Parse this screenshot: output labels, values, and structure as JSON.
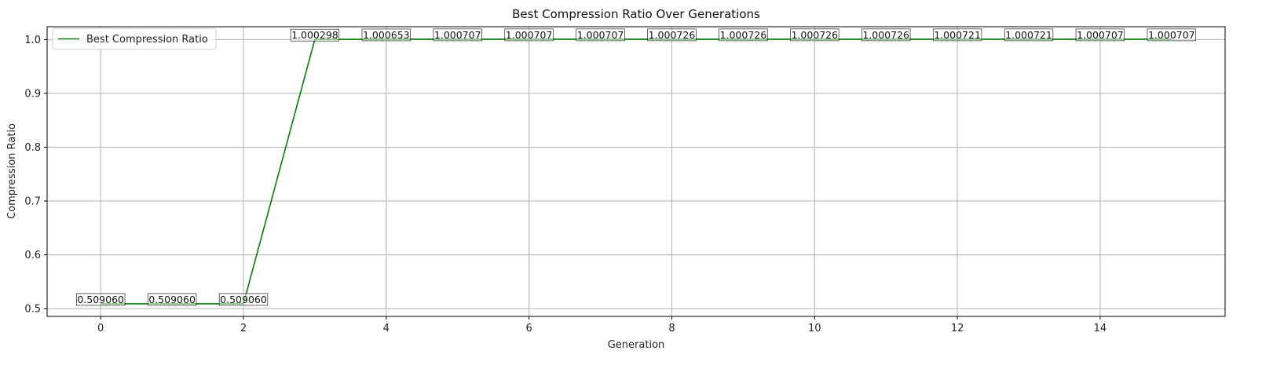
{
  "chart_data": {
    "type": "line",
    "title": "Best Compression Ratio Over Generations",
    "xlabel": "Generation",
    "ylabel": "Compression Ratio",
    "xlim": [
      -0.75,
      15.75
    ],
    "ylim": [
      0.4856,
      1.0239
    ],
    "xticks": [
      0,
      2,
      4,
      6,
      8,
      10,
      12,
      14
    ],
    "yticks": [
      0.5,
      0.6,
      0.7,
      0.8,
      0.9,
      1.0
    ],
    "ytick_labels": [
      "0.5",
      "0.6",
      "0.7",
      "0.8",
      "0.9",
      "1.0"
    ],
    "grid": true,
    "legend_position": "top-left",
    "series": [
      {
        "name": "Best Compression Ratio",
        "color": "#008000",
        "x": [
          0,
          1,
          2,
          3,
          4,
          5,
          6,
          7,
          8,
          9,
          10,
          11,
          12,
          13,
          14,
          15
        ],
        "values": [
          0.50906,
          0.50906,
          0.50906,
          1.000298,
          1.000653,
          1.000707,
          1.000707,
          1.000707,
          1.000726,
          1.000726,
          1.000726,
          1.000726,
          1.000721,
          1.000721,
          1.000707,
          1.000707
        ],
        "labels": [
          "0.509060",
          "0.509060",
          "0.509060",
          "1.000298",
          "1.000653",
          "1.000707",
          "1.000707",
          "1.000707",
          "1.000726",
          "1.000726",
          "1.000726",
          "1.000726",
          "1.000721",
          "1.000721",
          "1.000707",
          "1.000707"
        ]
      }
    ]
  }
}
